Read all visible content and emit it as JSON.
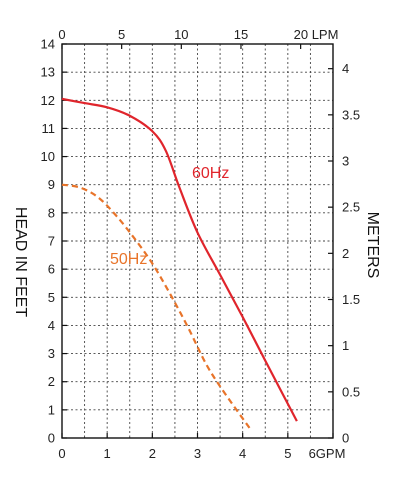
{
  "chart_data": {
    "type": "line",
    "x_bottom": {
      "label_suffix": "GPM",
      "ticks": [
        "0",
        "1",
        "2",
        "3",
        "4",
        "5",
        "6GPM"
      ],
      "range": [
        0,
        6
      ]
    },
    "x_top": {
      "ticks": [
        "0",
        "5",
        "10",
        "15",
        "20 LPM"
      ],
      "tick_values_gpm": [
        0,
        1.3209,
        2.6417,
        3.9626,
        5.2834
      ]
    },
    "y_left": {
      "label": "HEAD IN FEET",
      "ticks": [
        "0",
        "1",
        "2",
        "3",
        "4",
        "5",
        "6",
        "7",
        "8",
        "9",
        "10",
        "11",
        "12",
        "13",
        "14"
      ],
      "range": [
        0,
        14
      ]
    },
    "y_right": {
      "label": "METERS",
      "ticks": [
        "0",
        "0.5",
        "1",
        "1.5",
        "2",
        "2.5",
        "3",
        "3.5",
        "4"
      ],
      "tick_values_ft": [
        0,
        1.6404,
        3.2808,
        4.9213,
        6.5617,
        8.2021,
        9.8425,
        11.4829,
        13.1234
      ]
    },
    "grid": true,
    "series": [
      {
        "name": "60Hz",
        "color": "#e0252c",
        "dash": "solid",
        "points": [
          [
            0,
            12.05
          ],
          [
            0.5,
            11.9
          ],
          [
            1,
            11.75
          ],
          [
            1.5,
            11.45
          ],
          [
            2,
            10.9
          ],
          [
            2.3,
            10.2
          ],
          [
            2.6,
            8.9
          ],
          [
            3,
            7.3
          ],
          [
            3.5,
            5.8
          ],
          [
            4,
            4.3
          ],
          [
            4.5,
            2.75
          ],
          [
            5.2,
            0.6
          ]
        ]
      },
      {
        "name": "50Hz",
        "color": "#e8742a",
        "dash": "dashed",
        "points": [
          [
            0,
            9.0
          ],
          [
            0.4,
            8.9
          ],
          [
            0.8,
            8.55
          ],
          [
            1.2,
            7.9
          ],
          [
            1.6,
            7.1
          ],
          [
            2,
            6.2
          ],
          [
            2.4,
            5.1
          ],
          [
            2.8,
            3.9
          ],
          [
            3.2,
            2.6
          ],
          [
            3.6,
            1.6
          ],
          [
            4.2,
            0.25
          ]
        ]
      }
    ]
  }
}
